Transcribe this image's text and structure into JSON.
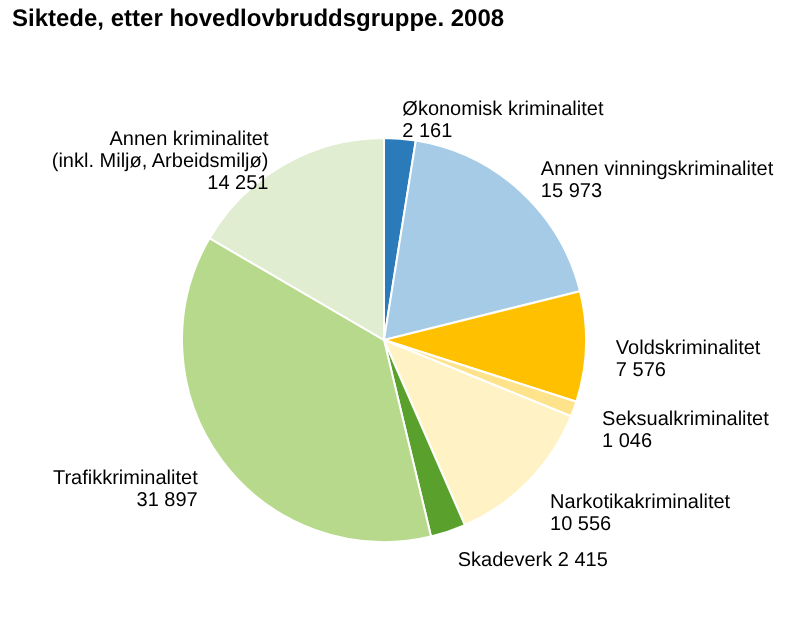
{
  "chart_data": {
    "type": "pie",
    "title": "Siktede, etter hovedlovbruddsgruppe. 2008",
    "categories": [
      "Økonomisk kriminalitet",
      "Annen vinningskriminalitet",
      "Voldskriminalitet",
      "Seksualkriminalitet",
      "Narkotikakriminalitet",
      "Skadeverk",
      "Trafikkriminalitet",
      "Annen kriminalitet (inkl. Miljø, Arbeidsmiljø)"
    ],
    "values": [
      2161,
      15973,
      7576,
      1046,
      10556,
      2415,
      31897,
      14251
    ],
    "value_labels": [
      "2 161",
      "15 973",
      "7 576",
      "1 046",
      "10 556",
      "2 415",
      "31 897",
      "14 251"
    ],
    "colors": [
      "#2b7bba",
      "#a6cbe6",
      "#ffc000",
      "#ffe38a",
      "#fff2c4",
      "#5aa02c",
      "#b7d98b",
      "#e1edd0"
    ]
  }
}
